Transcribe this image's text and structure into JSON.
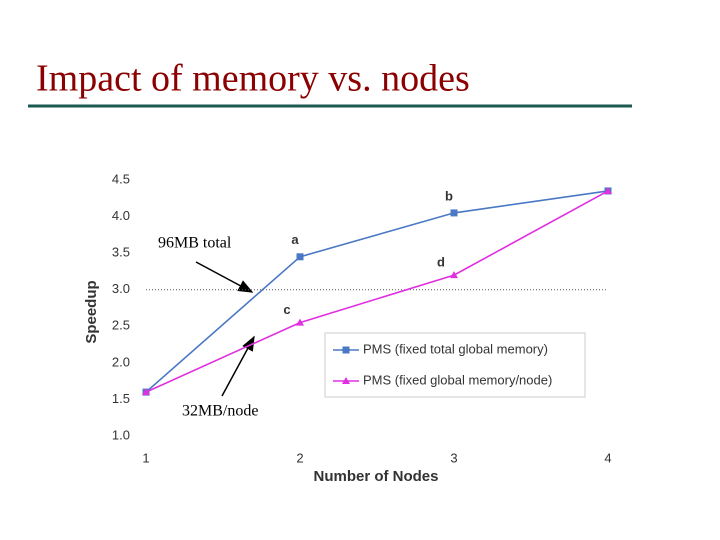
{
  "slide_title": "Impact of  memory vs. nodes",
  "chart_data": {
    "type": "line",
    "x_label": "Number of Nodes",
    "y_label": "Speedup",
    "x": [
      1,
      2,
      3,
      4
    ],
    "xlim": [
      1,
      4
    ],
    "xticks": [
      1,
      2,
      3,
      4
    ],
    "ylim": [
      1.0,
      4.5
    ],
    "yticks": [
      {
        "value": 1.0,
        "label": "1.0"
      },
      1.5,
      {
        "value": 2.0,
        "label": "2.0"
      },
      2.5,
      {
        "value": 3.0,
        "label": "3.0"
      },
      3.5,
      {
        "value": 4.0,
        "label": "4.0"
      },
      4.5
    ],
    "reference_line": 3.0,
    "legend": "lower right",
    "series": [
      {
        "name": "PMS (fixed total global memory)",
        "color": "#4a78c4",
        "marker": "square",
        "values": [
          1.6,
          3.45,
          4.05,
          4.35
        ],
        "point_labels": [
          null,
          "a",
          "b",
          null
        ]
      },
      {
        "name": "PMS (fixed global memory/node)",
        "color": "#e030e0",
        "marker": "triangle",
        "values": [
          1.6,
          2.55,
          3.2,
          4.35
        ],
        "point_labels": [
          null,
          "c",
          "d",
          null
        ]
      }
    ],
    "annotations": [
      "96MB total",
      "32MB/node"
    ]
  }
}
